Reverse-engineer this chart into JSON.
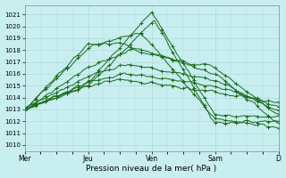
{
  "xlabel": "Pression niveau de la mer( hPa )",
  "background_color": "#c8eef0",
  "grid_color_major": "#a8d4d8",
  "grid_color_minor": "#b8dce0",
  "line_color": "#1a6b1a",
  "ylim": [
    1009.5,
    1021.8
  ],
  "yticks": [
    1010,
    1011,
    1012,
    1013,
    1014,
    1015,
    1016,
    1017,
    1018,
    1019,
    1020,
    1021
  ],
  "day_labels": [
    "Mer",
    "Jeu",
    "Ven",
    "Sam",
    "D"
  ],
  "day_positions": [
    0,
    48,
    96,
    144,
    192
  ],
  "num_points": 193
}
